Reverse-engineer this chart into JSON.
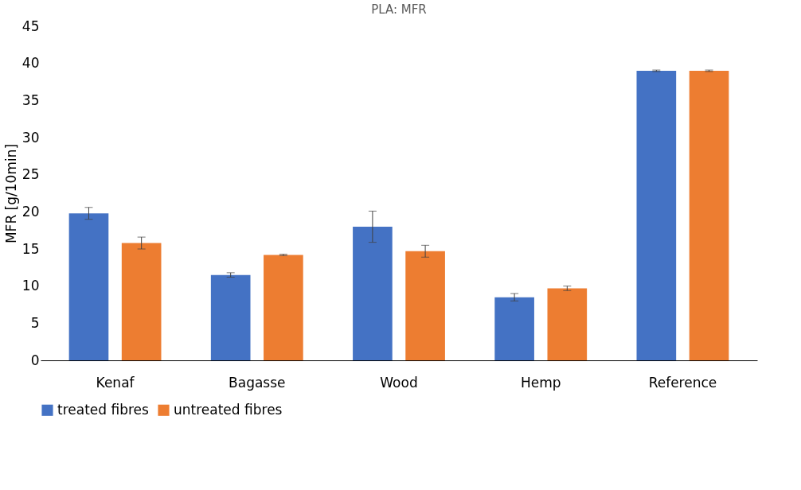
{
  "chart_data": {
    "type": "bar",
    "title": "PLA: MFR",
    "ylabel": "MFR [g/10min]",
    "categories": [
      "Kenaf",
      "Bagasse",
      "Wood",
      "Hemp",
      "Reference"
    ],
    "series": [
      {
        "name": "treated fibres",
        "color": "#4472c4",
        "values": [
          19.8,
          11.5,
          18.0,
          8.5,
          39.0
        ],
        "errors": [
          0.8,
          0.3,
          2.1,
          0.5,
          0.1
        ]
      },
      {
        "name": "untreated fibres",
        "color": "#ed7d31",
        "values": [
          15.8,
          14.2,
          14.7,
          9.7,
          39.0
        ],
        "errors": [
          0.8,
          0.1,
          0.8,
          0.3,
          0.1
        ]
      }
    ],
    "ylim": [
      0,
      45
    ],
    "yticks": [
      0,
      5,
      10,
      15,
      20,
      25,
      30,
      35,
      40,
      45
    ],
    "grid": false,
    "legend": "bottom"
  }
}
